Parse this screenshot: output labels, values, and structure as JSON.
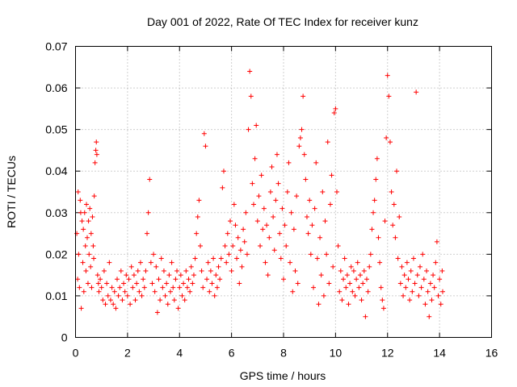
{
  "chart_data": {
    "type": "scatter",
    "title": "Day 001 of 2022, Rate Of TEC Index for receiver kunz",
    "xlabel": "GPS time / hours",
    "ylabel": "ROTI / TECUs",
    "xlim": [
      0,
      16
    ],
    "ylim": [
      0,
      0.07
    ],
    "x_ticks": [
      0,
      2,
      4,
      6,
      8,
      10,
      12,
      14,
      16
    ],
    "y_ticks": [
      0,
      0.01,
      0.02,
      0.03,
      0.04,
      0.05,
      0.06,
      0.07
    ],
    "x_tick_labels": [
      "0",
      "2",
      "4",
      "6",
      "8",
      "10",
      "12",
      "14",
      "16"
    ],
    "y_tick_labels": [
      "0",
      "0.01",
      "0.02",
      "0.03",
      "0.04",
      "0.05",
      "0.06",
      "0.07"
    ],
    "grid": true,
    "marker": "+",
    "colors": {
      "points": "#ff0000"
    },
    "points": [
      [
        0.05,
        0.025
      ],
      [
        0.08,
        0.014
      ],
      [
        0.1,
        0.035
      ],
      [
        0.12,
        0.02
      ],
      [
        0.15,
        0.012
      ],
      [
        0.18,
        0.033
      ],
      [
        0.2,
        0.03
      ],
      [
        0.22,
        0.007
      ],
      [
        0.25,
        0.028
      ],
      [
        0.28,
        0.018
      ],
      [
        0.3,
        0.026
      ],
      [
        0.32,
        0.011
      ],
      [
        0.35,
        0.03
      ],
      [
        0.38,
        0.022
      ],
      [
        0.4,
        0.016
      ],
      [
        0.42,
        0.032
      ],
      [
        0.45,
        0.024
      ],
      [
        0.48,
        0.013
      ],
      [
        0.5,
        0.028
      ],
      [
        0.52,
        0.02
      ],
      [
        0.55,
        0.031
      ],
      [
        0.58,
        0.017
      ],
      [
        0.6,
        0.025
      ],
      [
        0.62,
        0.012
      ],
      [
        0.65,
        0.029
      ],
      [
        0.68,
        0.022
      ],
      [
        0.7,
        0.019
      ],
      [
        0.72,
        0.034
      ],
      [
        0.75,
        0.042
      ],
      [
        0.78,
        0.045
      ],
      [
        0.8,
        0.047
      ],
      [
        0.82,
        0.044
      ],
      [
        0.85,
        0.015
      ],
      [
        0.88,
        0.013
      ],
      [
        0.9,
        0.011
      ],
      [
        0.95,
        0.014
      ],
      [
        1.0,
        0.012
      ],
      [
        1.05,
        0.009
      ],
      [
        1.1,
        0.016
      ],
      [
        1.15,
        0.008
      ],
      [
        1.2,
        0.013
      ],
      [
        1.25,
        0.01
      ],
      [
        1.3,
        0.018
      ],
      [
        1.35,
        0.009
      ],
      [
        1.4,
        0.012
      ],
      [
        1.45,
        0.008
      ],
      [
        1.5,
        0.011
      ],
      [
        1.55,
        0.007
      ],
      [
        1.6,
        0.014
      ],
      [
        1.65,
        0.01
      ],
      [
        1.7,
        0.012
      ],
      [
        1.75,
        0.016
      ],
      [
        1.8,
        0.009
      ],
      [
        1.85,
        0.013
      ],
      [
        1.9,
        0.011
      ],
      [
        1.95,
        0.015
      ],
      [
        2.0,
        0.01
      ],
      [
        2.05,
        0.014
      ],
      [
        2.1,
        0.008
      ],
      [
        2.15,
        0.017
      ],
      [
        2.2,
        0.012
      ],
      [
        2.25,
        0.015
      ],
      [
        2.3,
        0.009
      ],
      [
        2.35,
        0.013
      ],
      [
        2.4,
        0.016
      ],
      [
        2.45,
        0.011
      ],
      [
        2.5,
        0.018
      ],
      [
        2.55,
        0.01
      ],
      [
        2.6,
        0.014
      ],
      [
        2.65,
        0.012
      ],
      [
        2.7,
        0.016
      ],
      [
        2.75,
        0.025
      ],
      [
        2.8,
        0.03
      ],
      [
        2.85,
        0.038
      ],
      [
        2.9,
        0.018
      ],
      [
        2.95,
        0.013
      ],
      [
        3.0,
        0.02
      ],
      [
        3.05,
        0.011
      ],
      [
        3.1,
        0.017
      ],
      [
        3.15,
        0.006
      ],
      [
        3.2,
        0.014
      ],
      [
        3.25,
        0.009
      ],
      [
        3.3,
        0.019
      ],
      [
        3.35,
        0.012
      ],
      [
        3.4,
        0.016
      ],
      [
        3.45,
        0.01
      ],
      [
        3.5,
        0.013
      ],
      [
        3.55,
        0.008
      ],
      [
        3.6,
        0.015
      ],
      [
        3.65,
        0.011
      ],
      [
        3.7,
        0.018
      ],
      [
        3.75,
        0.012
      ],
      [
        3.8,
        0.009
      ],
      [
        3.85,
        0.014
      ],
      [
        3.9,
        0.016
      ],
      [
        3.95,
        0.007
      ],
      [
        4.0,
        0.012
      ],
      [
        4.05,
        0.015
      ],
      [
        4.1,
        0.01
      ],
      [
        4.15,
        0.013
      ],
      [
        4.2,
        0.009
      ],
      [
        4.25,
        0.016
      ],
      [
        4.3,
        0.012
      ],
      [
        4.35,
        0.014
      ],
      [
        4.4,
        0.011
      ],
      [
        4.45,
        0.017
      ],
      [
        4.5,
        0.013
      ],
      [
        4.55,
        0.015
      ],
      [
        4.6,
        0.019
      ],
      [
        4.65,
        0.025
      ],
      [
        4.7,
        0.029
      ],
      [
        4.75,
        0.033
      ],
      [
        4.8,
        0.022
      ],
      [
        4.85,
        0.016
      ],
      [
        4.9,
        0.012
      ],
      [
        4.95,
        0.049
      ],
      [
        5.0,
        0.046
      ],
      [
        5.05,
        0.014
      ],
      [
        5.1,
        0.018
      ],
      [
        5.15,
        0.011
      ],
      [
        5.2,
        0.016
      ],
      [
        5.25,
        0.013
      ],
      [
        5.3,
        0.019
      ],
      [
        5.35,
        0.01
      ],
      [
        5.4,
        0.015
      ],
      [
        5.45,
        0.012
      ],
      [
        5.5,
        0.017
      ],
      [
        5.55,
        0.014
      ],
      [
        5.6,
        0.019
      ],
      [
        5.65,
        0.036
      ],
      [
        5.7,
        0.04
      ],
      [
        5.75,
        0.022
      ],
      [
        5.8,
        0.018
      ],
      [
        5.85,
        0.025
      ],
      [
        5.9,
        0.02
      ],
      [
        5.95,
        0.028
      ],
      [
        6.0,
        0.016
      ],
      [
        6.05,
        0.022
      ],
      [
        6.1,
        0.032
      ],
      [
        6.15,
        0.027
      ],
      [
        6.2,
        0.019
      ],
      [
        6.25,
        0.024
      ],
      [
        6.3,
        0.013
      ],
      [
        6.35,
        0.021
      ],
      [
        6.4,
        0.017
      ],
      [
        6.45,
        0.026
      ],
      [
        6.5,
        0.023
      ],
      [
        6.55,
        0.03
      ],
      [
        6.6,
        0.02
      ],
      [
        6.65,
        0.05
      ],
      [
        6.7,
        0.064
      ],
      [
        6.75,
        0.058
      ],
      [
        6.8,
        0.037
      ],
      [
        6.85,
        0.032
      ],
      [
        6.9,
        0.043
      ],
      [
        6.95,
        0.051
      ],
      [
        7.0,
        0.028
      ],
      [
        7.05,
        0.034
      ],
      [
        7.1,
        0.022
      ],
      [
        7.15,
        0.039
      ],
      [
        7.2,
        0.026
      ],
      [
        7.25,
        0.031
      ],
      [
        7.3,
        0.018
      ],
      [
        7.35,
        0.027
      ],
      [
        7.4,
        0.015
      ],
      [
        7.45,
        0.024
      ],
      [
        7.5,
        0.035
      ],
      [
        7.55,
        0.041
      ],
      [
        7.6,
        0.029
      ],
      [
        7.65,
        0.021
      ],
      [
        7.7,
        0.033
      ],
      [
        7.75,
        0.044
      ],
      [
        7.8,
        0.037
      ],
      [
        7.85,
        0.025
      ],
      [
        7.9,
        0.019
      ],
      [
        7.95,
        0.031
      ],
      [
        8.0,
        0.014
      ],
      [
        8.05,
        0.027
      ],
      [
        8.1,
        0.022
      ],
      [
        8.15,
        0.035
      ],
      [
        8.2,
        0.042
      ],
      [
        8.25,
        0.018
      ],
      [
        8.3,
        0.03
      ],
      [
        8.35,
        0.011
      ],
      [
        8.4,
        0.026
      ],
      [
        8.45,
        0.016
      ],
      [
        8.5,
        0.034
      ],
      [
        8.55,
        0.013
      ],
      [
        8.6,
        0.046
      ],
      [
        8.65,
        0.048
      ],
      [
        8.7,
        0.05
      ],
      [
        8.75,
        0.058
      ],
      [
        8.8,
        0.044
      ],
      [
        8.85,
        0.038
      ],
      [
        8.9,
        0.029
      ],
      [
        8.95,
        0.025
      ],
      [
        9.0,
        0.033
      ],
      [
        9.05,
        0.02
      ],
      [
        9.1,
        0.027
      ],
      [
        9.15,
        0.012
      ],
      [
        9.2,
        0.031
      ],
      [
        9.25,
        0.042
      ],
      [
        9.3,
        0.019
      ],
      [
        9.35,
        0.008
      ],
      [
        9.4,
        0.024
      ],
      [
        9.45,
        0.015
      ],
      [
        9.5,
        0.035
      ],
      [
        9.55,
        0.01
      ],
      [
        9.6,
        0.028
      ],
      [
        9.65,
        0.02
      ],
      [
        9.7,
        0.047
      ],
      [
        9.75,
        0.013
      ],
      [
        9.8,
        0.032
      ],
      [
        9.85,
        0.039
      ],
      [
        9.9,
        0.017
      ],
      [
        9.95,
        0.054
      ],
      [
        10.0,
        0.055
      ],
      [
        10.05,
        0.035
      ],
      [
        10.1,
        0.022
      ],
      [
        10.15,
        0.011
      ],
      [
        10.2,
        0.016
      ],
      [
        10.25,
        0.009
      ],
      [
        10.3,
        0.014
      ],
      [
        10.35,
        0.019
      ],
      [
        10.4,
        0.012
      ],
      [
        10.45,
        0.015
      ],
      [
        10.5,
        0.008
      ],
      [
        10.55,
        0.013
      ],
      [
        10.6,
        0.017
      ],
      [
        10.65,
        0.011
      ],
      [
        10.7,
        0.016
      ],
      [
        10.75,
        0.01
      ],
      [
        10.8,
        0.014
      ],
      [
        10.85,
        0.018
      ],
      [
        10.9,
        0.012
      ],
      [
        10.95,
        0.015
      ],
      [
        11.0,
        0.009
      ],
      [
        11.05,
        0.013
      ],
      [
        11.1,
        0.016
      ],
      [
        11.15,
        0.005
      ],
      [
        11.2,
        0.014
      ],
      [
        11.25,
        0.011
      ],
      [
        11.3,
        0.017
      ],
      [
        11.35,
        0.02
      ],
      [
        11.4,
        0.026
      ],
      [
        11.45,
        0.03
      ],
      [
        11.5,
        0.033
      ],
      [
        11.55,
        0.038
      ],
      [
        11.6,
        0.043
      ],
      [
        11.65,
        0.024
      ],
      [
        11.7,
        0.018
      ],
      [
        11.75,
        0.012
      ],
      [
        11.8,
        0.009
      ],
      [
        11.85,
        0.007
      ],
      [
        11.9,
        0.028
      ],
      [
        11.95,
        0.048
      ],
      [
        12.0,
        0.063
      ],
      [
        12.05,
        0.058
      ],
      [
        12.1,
        0.047
      ],
      [
        12.15,
        0.035
      ],
      [
        12.2,
        0.027
      ],
      [
        12.25,
        0.032
      ],
      [
        12.3,
        0.024
      ],
      [
        12.35,
        0.04
      ],
      [
        12.4,
        0.019
      ],
      [
        12.45,
        0.029
      ],
      [
        12.5,
        0.013
      ],
      [
        12.55,
        0.017
      ],
      [
        12.6,
        0.01
      ],
      [
        12.65,
        0.015
      ],
      [
        12.7,
        0.012
      ],
      [
        12.75,
        0.018
      ],
      [
        12.8,
        0.014
      ],
      [
        12.85,
        0.009
      ],
      [
        12.9,
        0.016
      ],
      [
        12.95,
        0.011
      ],
      [
        13.0,
        0.019
      ],
      [
        13.05,
        0.013
      ],
      [
        13.1,
        0.059
      ],
      [
        13.15,
        0.015
      ],
      [
        13.2,
        0.01
      ],
      [
        13.25,
        0.017
      ],
      [
        13.3,
        0.012
      ],
      [
        13.35,
        0.02
      ],
      [
        13.4,
        0.014
      ],
      [
        13.45,
        0.008
      ],
      [
        13.5,
        0.016
      ],
      [
        13.55,
        0.011
      ],
      [
        13.6,
        0.005
      ],
      [
        13.65,
        0.013
      ],
      [
        13.7,
        0.009
      ],
      [
        13.75,
        0.015
      ],
      [
        13.8,
        0.012
      ],
      [
        13.85,
        0.018
      ],
      [
        13.9,
        0.023
      ],
      [
        13.95,
        0.01
      ],
      [
        14.0,
        0.014
      ],
      [
        14.05,
        0.008
      ],
      [
        14.1,
        0.016
      ],
      [
        14.12,
        0.011
      ]
    ]
  }
}
